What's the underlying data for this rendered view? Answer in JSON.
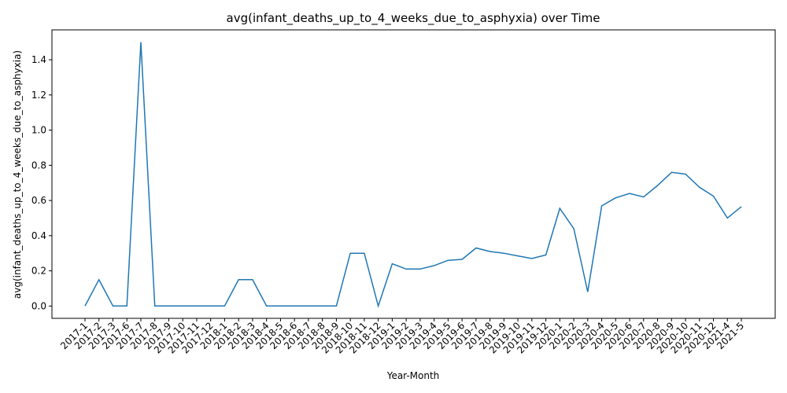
{
  "chart_data": {
    "type": "line",
    "title": "avg(infant_deaths_up_to_4_weeks_due_to_asphyxia) over Time",
    "xlabel": "Year-Month",
    "ylabel": "avg(infant_deaths_up_to_4_weeks_due_to_asphyxia)",
    "ylim": [
      -0.07,
      1.57
    ],
    "yticks": [
      "0.0",
      "0.2",
      "0.4",
      "0.6",
      "0.8",
      "1.0",
      "1.2",
      "1.4"
    ],
    "grid": false,
    "line_color": "#1f77b4",
    "categories": [
      "2017-1",
      "2017-2",
      "2017-3",
      "2017-6",
      "2017-7",
      "2017-8",
      "2017-9",
      "2017-10",
      "2017-11",
      "2017-12",
      "2018-1",
      "2018-2",
      "2018-3",
      "2018-4",
      "2018-5",
      "2018-6",
      "2018-7",
      "2018-8",
      "2018-9",
      "2018-10",
      "2018-11",
      "2018-12",
      "2019-1",
      "2019-2",
      "2019-3",
      "2019-4",
      "2019-5",
      "2019-6",
      "2019-7",
      "2019-8",
      "2019-9",
      "2019-10",
      "2019-11",
      "2019-12",
      "2020-1",
      "2020-2",
      "2020-3",
      "2020-4",
      "2020-5",
      "2020-6",
      "2020-7",
      "2020-8",
      "2020-9",
      "2020-10",
      "2020-11",
      "2020-12",
      "2021-4",
      "2021-5"
    ],
    "values": [
      0.0,
      0.15,
      0.0,
      0.0,
      1.5,
      0.0,
      0.0,
      0.0,
      0.0,
      0.0,
      0.0,
      0.15,
      0.15,
      0.0,
      0.0,
      0.0,
      0.0,
      0.0,
      0.0,
      0.3,
      0.3,
      0.0,
      0.24,
      0.21,
      0.21,
      0.23,
      0.26,
      0.265,
      0.33,
      0.31,
      0.3,
      0.285,
      0.27,
      0.29,
      0.555,
      0.44,
      0.08,
      0.57,
      0.615,
      0.64,
      0.62,
      0.685,
      0.76,
      0.75,
      0.675,
      0.625,
      0.5,
      0.565
    ]
  }
}
